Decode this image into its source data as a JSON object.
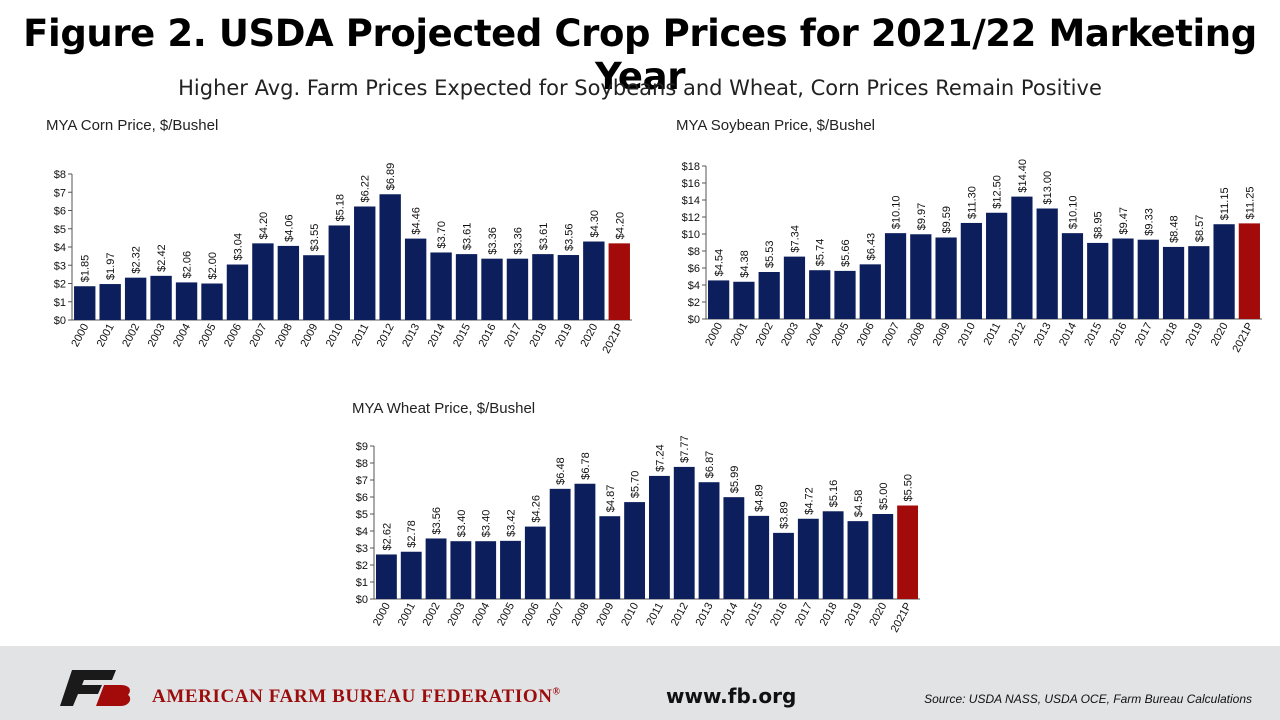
{
  "title": "Figure 2. USDA Projected Crop Prices for 2021/22 Marketing Year",
  "subtitle": "Higher Avg. Farm Prices Expected for Soybeans and Wheat, Corn Prices Remain Positive",
  "colors": {
    "bar": "#0c1f5c",
    "highlight": "#a30b0b",
    "footer": "#e2e3e5",
    "brand_red": "#9b0d0d"
  },
  "chart_data": [
    {
      "id": "corn",
      "type": "bar",
      "title": "MYA Corn Price, $/Bushel",
      "categories": [
        "2000",
        "2001",
        "2002",
        "2003",
        "2004",
        "2005",
        "2006",
        "2007",
        "2008",
        "2009",
        "2010",
        "2011",
        "2012",
        "2013",
        "2014",
        "2015",
        "2016",
        "2017",
        "2018",
        "2019",
        "2020",
        "2021P"
      ],
      "values": [
        1.85,
        1.97,
        2.32,
        2.42,
        2.06,
        2.0,
        3.04,
        4.2,
        4.06,
        3.55,
        5.18,
        6.22,
        6.89,
        4.46,
        3.7,
        3.61,
        3.36,
        3.36,
        3.61,
        3.56,
        4.3,
        4.2
      ],
      "value_labels": [
        "$1.85",
        "$1.97",
        "$2.32",
        "$2.42",
        "$2.06",
        "$2.00",
        "$3.04",
        "$4.20",
        "$4.06",
        "$3.55",
        "$5.18",
        "$6.22",
        "$6.89",
        "$4.46",
        "$3.70",
        "$3.61",
        "$3.36",
        "$3.36",
        "$3.61",
        "$3.56",
        "$4.30",
        "$4.20"
      ],
      "ylim": [
        0,
        8
      ],
      "yticks": [
        "$0",
        "$1",
        "$2",
        "$3",
        "$4",
        "$5",
        "$6",
        "$7",
        "$8"
      ],
      "highlight_index": 21,
      "grid": false
    },
    {
      "id": "soy",
      "type": "bar",
      "title": "MYA Soybean Price, $/Bushel",
      "categories": [
        "2000",
        "2001",
        "2002",
        "2003",
        "2004",
        "2005",
        "2006",
        "2007",
        "2008",
        "2009",
        "2010",
        "2011",
        "2012",
        "2013",
        "2014",
        "2015",
        "2016",
        "2017",
        "2018",
        "2019",
        "2020",
        "2021P"
      ],
      "values": [
        4.54,
        4.38,
        5.53,
        7.34,
        5.74,
        5.66,
        6.43,
        10.1,
        9.97,
        9.59,
        11.3,
        12.5,
        14.4,
        13.0,
        10.1,
        8.95,
        9.47,
        9.33,
        8.48,
        8.57,
        11.15,
        11.25
      ],
      "value_labels": [
        "$4.54",
        "$4.38",
        "$5.53",
        "$7.34",
        "$5.74",
        "$5.66",
        "$6.43",
        "$10.10",
        "$9.97",
        "$9.59",
        "$11.30",
        "$12.50",
        "$14.40",
        "$13.00",
        "$10.10",
        "$8.95",
        "$9.47",
        "$9.33",
        "$8.48",
        "$8.57",
        "$11.15",
        "$11.25"
      ],
      "ylim": [
        0,
        18
      ],
      "yticks": [
        "$0",
        "$2",
        "$4",
        "$6",
        "$8",
        "$10",
        "$12",
        "$14",
        "$16",
        "$18"
      ],
      "highlight_index": 21,
      "grid": false
    },
    {
      "id": "wheat",
      "type": "bar",
      "title": "MYA Wheat Price, $/Bushel",
      "categories": [
        "2000",
        "2001",
        "2002",
        "2003",
        "2004",
        "2005",
        "2006",
        "2007",
        "2008",
        "2009",
        "2010",
        "2011",
        "2012",
        "2013",
        "2014",
        "2015",
        "2016",
        "2017",
        "2018",
        "2019",
        "2020",
        "2021P"
      ],
      "values": [
        2.62,
        2.78,
        3.56,
        3.4,
        3.4,
        3.42,
        4.26,
        6.48,
        6.78,
        4.87,
        5.7,
        7.24,
        7.77,
        6.87,
        5.99,
        4.89,
        3.89,
        4.72,
        5.16,
        4.58,
        5.0,
        5.5
      ],
      "value_labels": [
        "$2.62",
        "$2.78",
        "$3.56",
        "$3.40",
        "$3.40",
        "$3.42",
        "$4.26",
        "$6.48",
        "$6.78",
        "$4.87",
        "$5.70",
        "$7.24",
        "$7.77",
        "$6.87",
        "$5.99",
        "$4.89",
        "$3.89",
        "$4.72",
        "$5.16",
        "$4.58",
        "$5.00",
        "$5.50"
      ],
      "ylim": [
        0,
        9
      ],
      "yticks": [
        "$0",
        "$1",
        "$2",
        "$3",
        "$4",
        "$5",
        "$6",
        "$7",
        "$8",
        "$9"
      ],
      "highlight_index": 21,
      "grid": false
    }
  ],
  "footer": {
    "logo_icon": "fb-logo-icon",
    "org_name": "AMERICAN FARM BUREAU FEDERATION",
    "org_mark": "®",
    "website": "www.fb.org",
    "source": "Source: USDA NASS, USDA OCE, Farm Bureau Calculations"
  }
}
